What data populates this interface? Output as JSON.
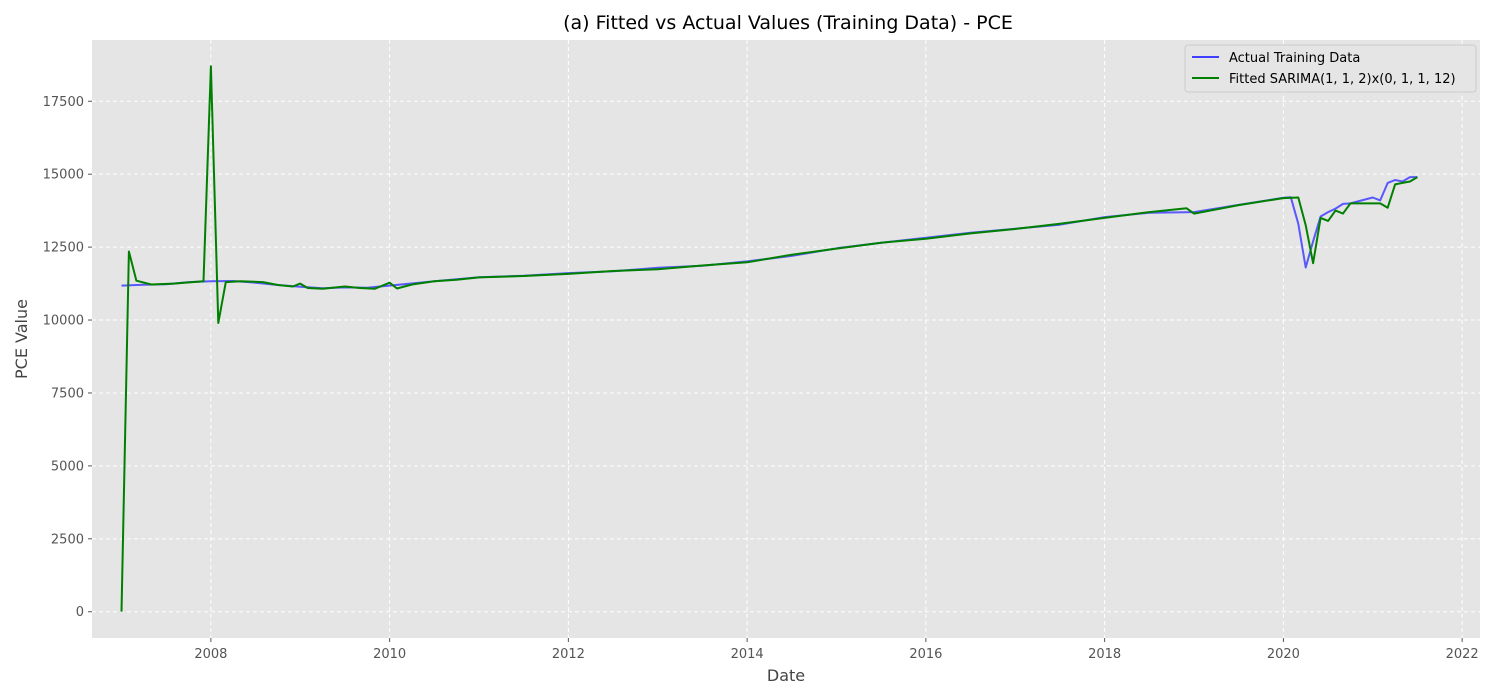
{
  "chart_data": {
    "type": "line",
    "title": "(a) Fitted vs Actual Values (Training Data) - PCE",
    "xlabel": "Date",
    "ylabel": "PCE Value",
    "xlim": [
      2006.67,
      2022.2
    ],
    "ylim": [
      -900,
      19600
    ],
    "x_ticks": [
      2008,
      2010,
      2012,
      2014,
      2016,
      2018,
      2020,
      2022
    ],
    "y_ticks": [
      0,
      2500,
      5000,
      7500,
      10000,
      12500,
      15000,
      17500
    ],
    "grid": true,
    "legend_position": "top-right",
    "background": "#e5e5e5",
    "series": [
      {
        "name": "Actual Training Data",
        "color": "#4040ff",
        "x": [
          2007.0,
          2007.25,
          2007.5,
          2007.75,
          2008.0,
          2008.25,
          2008.5,
          2008.75,
          2009.0,
          2009.25,
          2009.5,
          2009.75,
          2010.0,
          2010.5,
          2011.0,
          2011.5,
          2012.0,
          2012.5,
          2013.0,
          2013.5,
          2014.0,
          2014.5,
          2015.0,
          2015.5,
          2016.0,
          2016.5,
          2017.0,
          2017.5,
          2018.0,
          2018.5,
          2019.0,
          2019.5,
          2020.0,
          2020.083,
          2020.167,
          2020.25,
          2020.333,
          2020.417,
          2020.5,
          2020.583,
          2020.667,
          2020.75,
          2021.0,
          2021.083,
          2021.167,
          2021.25,
          2021.333,
          2021.417,
          2021.5
        ],
        "y": [
          11180,
          11210,
          11230,
          11300,
          11330,
          11340,
          11280,
          11200,
          11140,
          11090,
          11120,
          11110,
          11180,
          11330,
          11470,
          11520,
          11610,
          11670,
          11790,
          11860,
          12010,
          12200,
          12460,
          12650,
          12820,
          12990,
          13130,
          13270,
          13530,
          13680,
          13700,
          13950,
          14190,
          14210,
          13300,
          11800,
          12700,
          13550,
          13700,
          13820,
          13980,
          14000,
          14200,
          14100,
          14700,
          14800,
          14750,
          14900,
          14900
        ]
      },
      {
        "name": "Fitted SARIMA(1, 1, 2)x(0, 1, 1, 12)",
        "color": "#008000",
        "x": [
          2007.0,
          2007.083,
          2007.167,
          2007.333,
          2007.583,
          2007.917,
          2008.0,
          2008.083,
          2008.167,
          2008.333,
          2008.583,
          2008.75,
          2008.917,
          2009.0,
          2009.083,
          2009.25,
          2009.5,
          2009.667,
          2009.833,
          2010.0,
          2010.083,
          2010.25,
          2010.5,
          2010.75,
          2011.0,
          2011.5,
          2012.0,
          2012.5,
          2013.0,
          2013.5,
          2014.0,
          2014.5,
          2015.0,
          2015.5,
          2016.0,
          2016.5,
          2017.0,
          2017.5,
          2018.0,
          2018.5,
          2018.917,
          2019.0,
          2019.5,
          2020.0,
          2020.167,
          2020.25,
          2020.333,
          2020.417,
          2020.5,
          2020.583,
          2020.667,
          2020.75,
          2021.0,
          2021.083,
          2021.167,
          2021.25,
          2021.333,
          2021.417,
          2021.5
        ],
        "y": [
          0,
          12350,
          11350,
          11220,
          11250,
          11330,
          18700,
          9900,
          11300,
          11330,
          11300,
          11200,
          11150,
          11250,
          11100,
          11070,
          11150,
          11100,
          11070,
          11280,
          11080,
          11220,
          11330,
          11380,
          11460,
          11510,
          11580,
          11680,
          11740,
          11870,
          11980,
          12240,
          12450,
          12650,
          12790,
          12970,
          13120,
          13300,
          13500,
          13700,
          13830,
          13650,
          13940,
          14180,
          14200,
          13250,
          11950,
          13500,
          13400,
          13750,
          13650,
          14000,
          14000,
          14000,
          13850,
          14650,
          14700,
          14750,
          14900
        ]
      }
    ]
  }
}
